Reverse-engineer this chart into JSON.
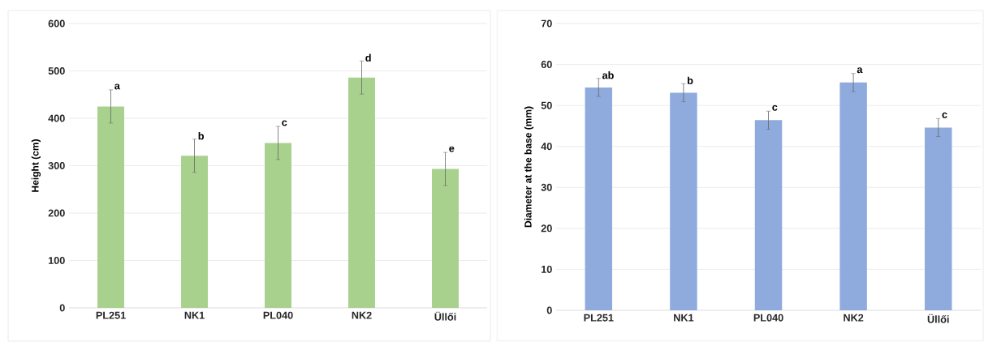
{
  "chart_data": [
    {
      "type": "bar",
      "ylabel": "Height (cm)",
      "categories": [
        "PL251",
        "NK1",
        "PL040",
        "NK2",
        "Üllői"
      ],
      "values": [
        425,
        321,
        348,
        486,
        293
      ],
      "errors": [
        35,
        35,
        35,
        35,
        35
      ],
      "color": "#a9d18e",
      "ylim": [
        0,
        600
      ],
      "yticks": [
        0,
        100,
        200,
        300,
        400,
        500,
        600
      ],
      "grid": "y",
      "annotations": [
        "a",
        "b",
        "c",
        "d",
        "e"
      ]
    },
    {
      "type": "bar",
      "ylabel": "Diameter at the base (mm)",
      "categories": [
        "PL251",
        "NK1",
        "PL040",
        "NK2",
        "Üllői"
      ],
      "values": [
        54.4,
        53.1,
        46.4,
        55.6,
        44.6
      ],
      "errors": [
        2.2,
        2.2,
        2.2,
        2.2,
        2.2
      ],
      "color": "#8faadc",
      "ylim": [
        0,
        70
      ],
      "yticks": [
        0,
        10,
        20,
        30,
        40,
        50,
        60,
        70
      ],
      "grid": "y",
      "annotations": [
        "ab",
        "b",
        "c",
        "a",
        "c"
      ]
    }
  ]
}
